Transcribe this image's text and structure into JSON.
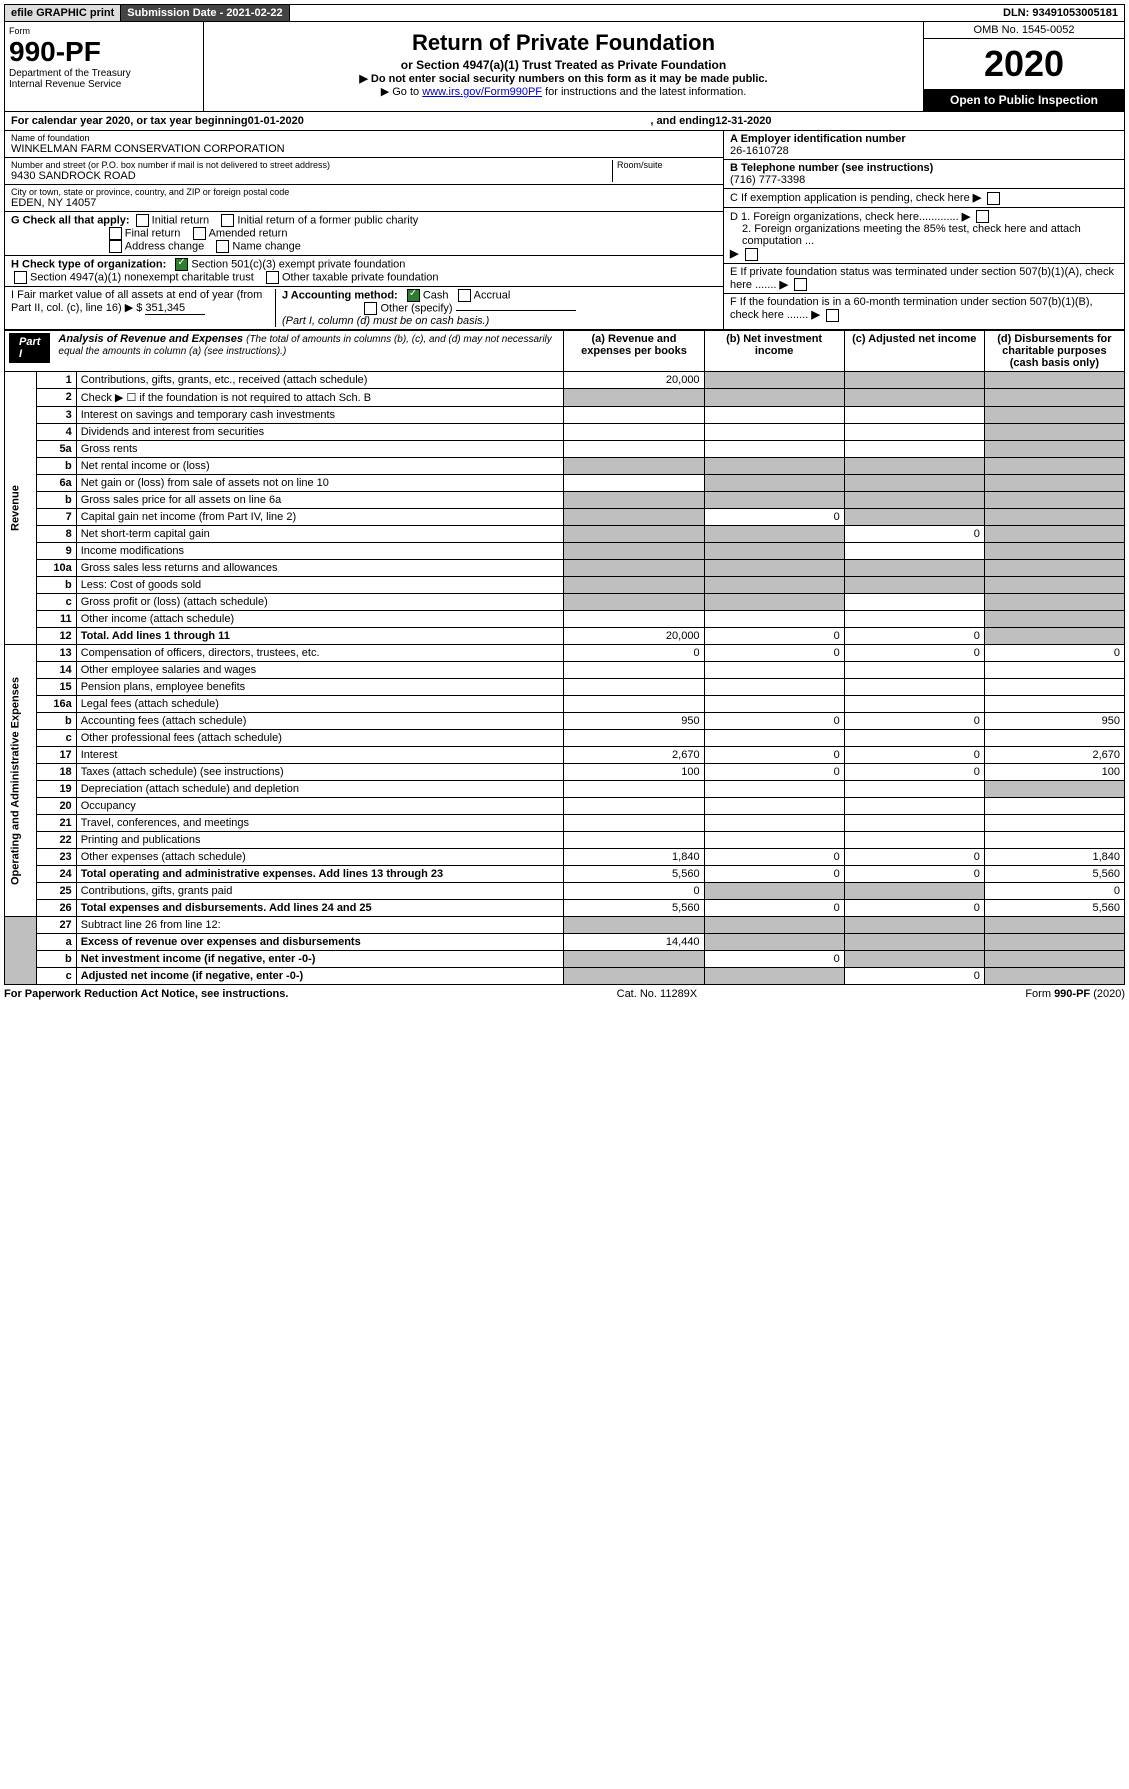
{
  "topbar": {
    "efile": "efile GRAPHIC print",
    "submission": "Submission Date - 2021-02-22",
    "dln": "DLN: 93491053005181"
  },
  "header": {
    "form_label": "Form",
    "form_no": "990-PF",
    "dept": "Department of the Treasury",
    "irs": "Internal Revenue Service",
    "title": "Return of Private Foundation",
    "subtitle": "or Section 4947(a)(1) Trust Treated as Private Foundation",
    "instr1": "▶ Do not enter social security numbers on this form as it may be made public.",
    "instr2_pre": "▶ Go to ",
    "instr2_link": "www.irs.gov/Form990PF",
    "instr2_post": " for instructions and the latest information.",
    "omb": "OMB No. 1545-0052",
    "year": "2020",
    "open": "Open to Public Inspection"
  },
  "calyear": {
    "pre": "For calendar year 2020, or tax year beginning ",
    "begin": "01-01-2020",
    "mid": " , and ending ",
    "end": "12-31-2020"
  },
  "info": {
    "name_label": "Name of foundation",
    "name": "WINKELMAN FARM CONSERVATION CORPORATION",
    "addr_label": "Number and street (or P.O. box number if mail is not delivered to street address)",
    "addr": "9430 SANDROCK ROAD",
    "room_label": "Room/suite",
    "city_label": "City or town, state or province, country, and ZIP or foreign postal code",
    "city": "EDEN, NY  14057",
    "ein_label": "A Employer identification number",
    "ein": "26-1610728",
    "phone_label": "B Telephone number (see instructions)",
    "phone": "(716) 777-3398",
    "c": "C  If exemption application is pending, check here",
    "d1": "D 1. Foreign organizations, check here.............",
    "d2": "2. Foreign organizations meeting the 85% test, check here and attach computation ...",
    "e": "E  If private foundation status was terminated under section 507(b)(1)(A), check here .......",
    "f": "F  If the foundation is in a 60-month termination under section 507(b)(1)(B), check here .......",
    "g_label": "G Check all that apply:",
    "g_opts": [
      "Initial return",
      "Initial return of a former public charity",
      "Final return",
      "Amended return",
      "Address change",
      "Name change"
    ],
    "h_label": "H Check type of organization:",
    "h_opts": [
      "Section 501(c)(3) exempt private foundation",
      "Section 4947(a)(1) nonexempt charitable trust",
      "Other taxable private foundation"
    ],
    "i_label": "I Fair market value of all assets at end of year (from Part II, col. (c), line 16) ▶ $",
    "i_val": "351,345",
    "j_label": "J Accounting method:",
    "j_cash": "Cash",
    "j_accrual": "Accrual",
    "j_other": "Other (specify)",
    "j_note": "(Part I, column (d) must be on cash basis.)"
  },
  "part1": {
    "label": "Part I",
    "title": "Analysis of Revenue and Expenses",
    "title_note": " (The total of amounts in columns (b), (c), and (d) may not necessarily equal the amounts in column (a) (see instructions).)",
    "col_a": "(a) Revenue and expenses per books",
    "col_b": "(b) Net investment income",
    "col_c": "(c) Adjusted net income",
    "col_d": "(d) Disbursements for charitable purposes (cash basis only)",
    "revenue_label": "Revenue",
    "expenses_label": "Operating and Administrative Expenses"
  },
  "rows": [
    {
      "n": "1",
      "d": "Contributions, gifts, grants, etc., received (attach schedule)",
      "a": "20,000",
      "b_sh": true,
      "c_sh": true,
      "d_sh": true
    },
    {
      "n": "2",
      "d": "Check ▶ ☐ if the foundation is not required to attach Sch. B",
      "a_sh": true,
      "b_sh": true,
      "c_sh": true,
      "d_sh": true,
      "bold_fragments": [
        "not"
      ]
    },
    {
      "n": "3",
      "d": "Interest on savings and temporary cash investments",
      "d_sh": true
    },
    {
      "n": "4",
      "d": "Dividends and interest from securities",
      "d_sh": true
    },
    {
      "n": "5a",
      "d": "Gross rents",
      "d_sh": true
    },
    {
      "n": "b",
      "d": "Net rental income or (loss)",
      "a_sh": true,
      "b_sh": true,
      "c_sh": true,
      "d_sh": true
    },
    {
      "n": "6a",
      "d": "Net gain or (loss) from sale of assets not on line 10",
      "b_sh": true,
      "c_sh": true,
      "d_sh": true
    },
    {
      "n": "b",
      "d": "Gross sales price for all assets on line 6a",
      "a_sh": true,
      "b_sh": true,
      "c_sh": true,
      "d_sh": true
    },
    {
      "n": "7",
      "d": "Capital gain net income (from Part IV, line 2)",
      "a_sh": true,
      "b": "0",
      "c_sh": true,
      "d_sh": true
    },
    {
      "n": "8",
      "d": "Net short-term capital gain",
      "a_sh": true,
      "b_sh": true,
      "c": "0",
      "d_sh": true
    },
    {
      "n": "9",
      "d": "Income modifications",
      "a_sh": true,
      "b_sh": true,
      "d_sh": true
    },
    {
      "n": "10a",
      "d": "Gross sales less returns and allowances",
      "a_sh": true,
      "b_sh": true,
      "c_sh": true,
      "d_sh": true
    },
    {
      "n": "b",
      "d": "Less: Cost of goods sold",
      "a_sh": true,
      "b_sh": true,
      "c_sh": true,
      "d_sh": true
    },
    {
      "n": "c",
      "d": "Gross profit or (loss) (attach schedule)",
      "a_sh": true,
      "b_sh": true,
      "d_sh": true
    },
    {
      "n": "11",
      "d": "Other income (attach schedule)",
      "d_sh": true
    },
    {
      "n": "12",
      "d": "Total. Add lines 1 through 11",
      "a": "20,000",
      "b": "0",
      "c": "0",
      "d_sh": true,
      "bold": true
    }
  ],
  "exp_rows": [
    {
      "n": "13",
      "d": "Compensation of officers, directors, trustees, etc.",
      "a": "0",
      "b": "0",
      "c": "0",
      "dd": "0"
    },
    {
      "n": "14",
      "d": "Other employee salaries and wages"
    },
    {
      "n": "15",
      "d": "Pension plans, employee benefits"
    },
    {
      "n": "16a",
      "d": "Legal fees (attach schedule)"
    },
    {
      "n": "b",
      "d": "Accounting fees (attach schedule)",
      "a": "950",
      "b": "0",
      "c": "0",
      "dd": "950"
    },
    {
      "n": "c",
      "d": "Other professional fees (attach schedule)"
    },
    {
      "n": "17",
      "d": "Interest",
      "a": "2,670",
      "b": "0",
      "c": "0",
      "dd": "2,670"
    },
    {
      "n": "18",
      "d": "Taxes (attach schedule) (see instructions)",
      "a": "100",
      "b": "0",
      "c": "0",
      "dd": "100"
    },
    {
      "n": "19",
      "d": "Depreciation (attach schedule) and depletion",
      "d_sh": true
    },
    {
      "n": "20",
      "d": "Occupancy"
    },
    {
      "n": "21",
      "d": "Travel, conferences, and meetings"
    },
    {
      "n": "22",
      "d": "Printing and publications"
    },
    {
      "n": "23",
      "d": "Other expenses (attach schedule)",
      "a": "1,840",
      "b": "0",
      "c": "0",
      "dd": "1,840"
    },
    {
      "n": "24",
      "d": "Total operating and administrative expenses. Add lines 13 through 23",
      "a": "5,560",
      "b": "0",
      "c": "0",
      "dd": "5,560",
      "bold": true
    },
    {
      "n": "25",
      "d": "Contributions, gifts, grants paid",
      "a": "0",
      "b_sh": true,
      "c_sh": true,
      "dd": "0"
    },
    {
      "n": "26",
      "d": "Total expenses and disbursements. Add lines 24 and 25",
      "a": "5,560",
      "b": "0",
      "c": "0",
      "dd": "5,560",
      "bold": true
    }
  ],
  "final_rows": [
    {
      "n": "27",
      "d": "Subtract line 26 from line 12:",
      "a_sh": true,
      "b_sh": true,
      "c_sh": true,
      "d_sh": true
    },
    {
      "n": "a",
      "d": "Excess of revenue over expenses and disbursements",
      "a": "14,440",
      "b_sh": true,
      "c_sh": true,
      "d_sh": true,
      "bold": true
    },
    {
      "n": "b",
      "d": "Net investment income (if negative, enter -0-)",
      "a_sh": true,
      "b": "0",
      "c_sh": true,
      "d_sh": true,
      "bold": true
    },
    {
      "n": "c",
      "d": "Adjusted net income (if negative, enter -0-)",
      "a_sh": true,
      "b_sh": true,
      "c": "0",
      "d_sh": true,
      "bold": true
    }
  ],
  "footer": {
    "left": "For Paperwork Reduction Act Notice, see instructions.",
    "mid": "Cat. No. 11289X",
    "right": "Form 990-PF (2020)"
  }
}
